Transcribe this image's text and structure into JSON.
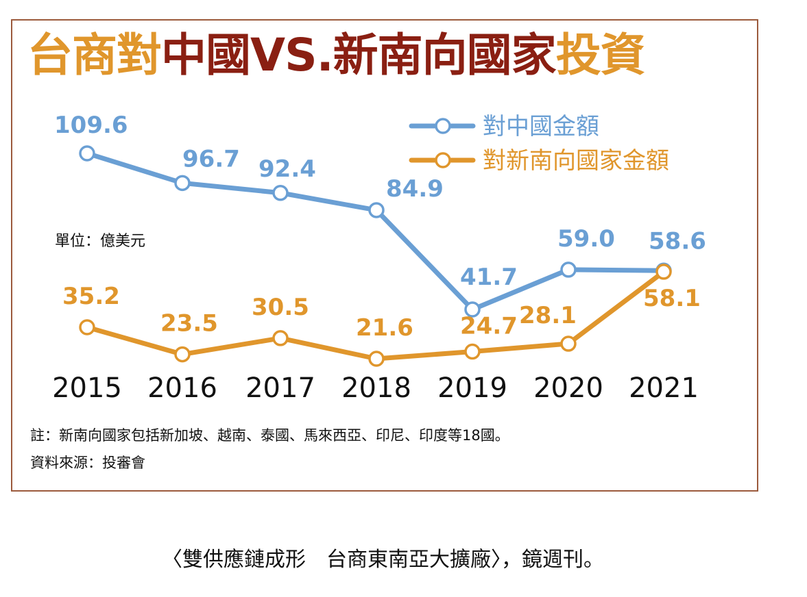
{
  "title": {
    "part1": "台商對",
    "part2": "中國VS.新南向國家",
    "part3": "投資"
  },
  "unit": "單位：億美元",
  "note": "註：新南向國家包括新加坡、越南、泰國、馬來西亞、印尼、印度等18國。",
  "source": "資料來源：投審會",
  "caption": "〈雙供應鏈成形　台商東南亞大擴廠〉，鏡週刊。",
  "colors": {
    "china": "#6a9fd4",
    "newsouth": "#e0962c",
    "title_orange": "#e0962c",
    "title_red": "#8a1f12",
    "frame": "#9b5a3c"
  },
  "chart_data": {
    "type": "line",
    "categories": [
      "2015",
      "2016",
      "2017",
      "2018",
      "2019",
      "2020",
      "2021"
    ],
    "series": [
      {
        "name": "對中國金額",
        "values": [
          109.6,
          96.7,
          92.4,
          84.9,
          41.7,
          59.0,
          58.6
        ],
        "labels": [
          "109.6",
          "96.7",
          "92.4",
          "84.9",
          "41.7",
          "59.0",
          "58.6"
        ]
      },
      {
        "name": "對新南向國家金額",
        "values": [
          35.2,
          23.5,
          30.5,
          21.6,
          24.7,
          28.1,
          58.1
        ],
        "labels": [
          "35.2",
          "23.5",
          "30.5",
          "21.6",
          "24.7",
          "28.1",
          "58.1"
        ]
      }
    ],
    "ylim": [
      0,
      120
    ],
    "grid": false,
    "legend": "top-right"
  }
}
